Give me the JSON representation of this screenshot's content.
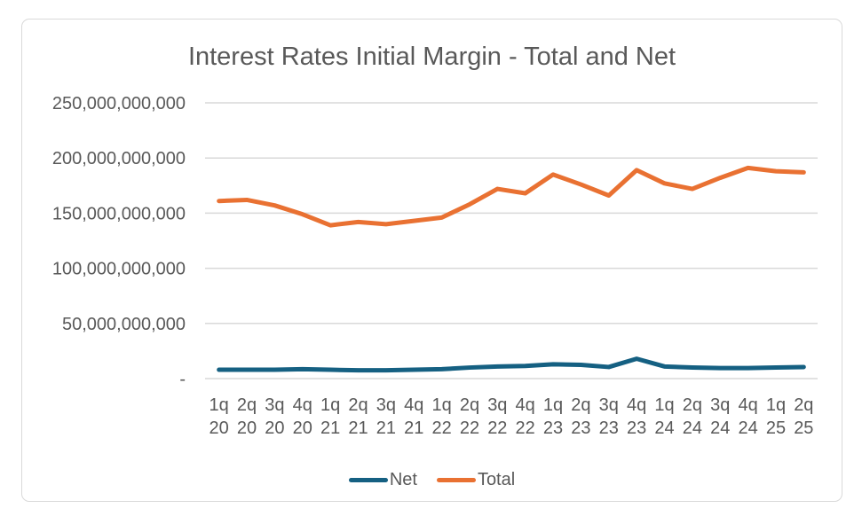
{
  "chart_data": {
    "type": "line",
    "title": "Interest Rates Initial Margin - Total and Net",
    "categories": [
      "1q 20",
      "2q 20",
      "3q 20",
      "4q 20",
      "1q 21",
      "2q 21",
      "3q 21",
      "4q 21",
      "1q 22",
      "2q 22",
      "3q 22",
      "4q 22",
      "1q 23",
      "2q 23",
      "3q 23",
      "4q 23",
      "1q 24",
      "2q 24",
      "3q 24",
      "4q 24",
      "1q 25",
      "2q 25"
    ],
    "series": [
      {
        "name": "Net",
        "color": "#156082",
        "values": [
          8000000000,
          8000000000,
          8000000000,
          8500000000,
          8000000000,
          7500000000,
          7500000000,
          8000000000,
          8500000000,
          10000000000,
          11000000000,
          11500000000,
          13000000000,
          12500000000,
          10500000000,
          18000000000,
          11000000000,
          10000000000,
          9500000000,
          9500000000,
          10000000000,
          10500000000
        ]
      },
      {
        "name": "Total",
        "color": "#E97132",
        "values": [
          161000000000,
          162000000000,
          157000000000,
          149000000000,
          139000000000,
          142000000000,
          140000000000,
          143000000000,
          146000000000,
          158000000000,
          172000000000,
          168000000000,
          185000000000,
          176000000000,
          166000000000,
          189000000000,
          177000000000,
          172000000000,
          182000000000,
          191000000000,
          188000000000,
          187000000000
        ]
      }
    ],
    "y_ticks": [
      {
        "value": 250000000000,
        "label": "250,000,000,000"
      },
      {
        "value": 200000000000,
        "label": "200,000,000,000"
      },
      {
        "value": 150000000000,
        "label": "150,000,000,000"
      },
      {
        "value": 100000000000,
        "label": "100,000,000,000"
      },
      {
        "value": 50000000000,
        "label": "50,000,000,000"
      },
      {
        "value": 0,
        "label": "-"
      }
    ],
    "ylim": [
      0,
      250000000000
    ],
    "grid": true,
    "legend_position": "bottom",
    "xlabel": "",
    "ylabel": "",
    "colors": {
      "grid": "#D9D9D9",
      "text": "#595959",
      "title": "#595959",
      "border": "#D9D9D9",
      "background": "#FFFFFF"
    }
  }
}
